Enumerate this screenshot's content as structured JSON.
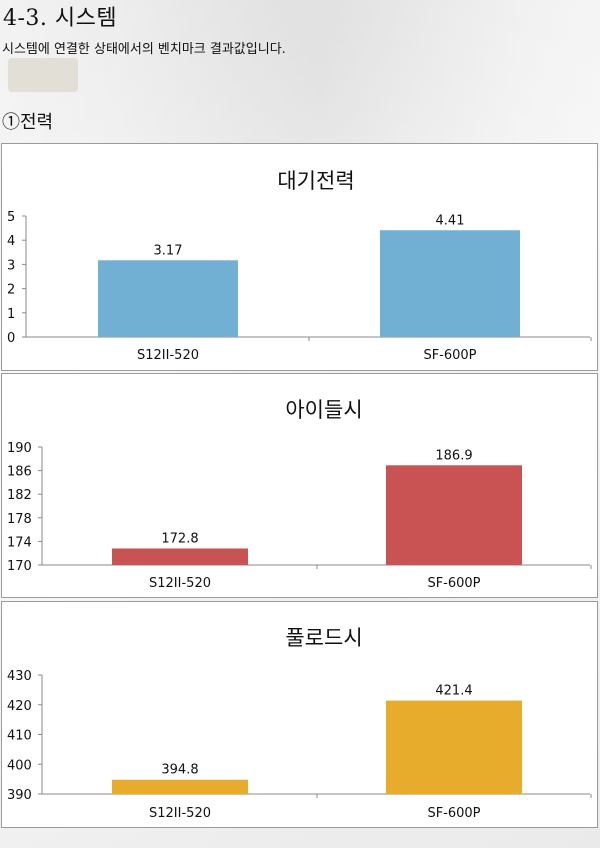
{
  "page": {
    "heading": "4-3. 시스템",
    "description": "시스템에 연결한 상태에서의 벤치마크 결과값입니다.",
    "section_label": "①전력"
  },
  "chart_data": [
    {
      "type": "bar",
      "title": "대기전력",
      "categories": [
        "S12II-520",
        "SF-600P"
      ],
      "values": [
        3.17,
        4.41
      ],
      "value_labels": [
        "3.17",
        "4.41"
      ],
      "ylim": [
        0,
        5
      ],
      "yticks": [
        0,
        1,
        2,
        3,
        4,
        5
      ],
      "color": "#71b0d3",
      "grid": false,
      "legend": "none"
    },
    {
      "type": "bar",
      "title": "아이들시",
      "categories": [
        "S12II-520",
        "SF-600P"
      ],
      "values": [
        172.8,
        186.9
      ],
      "value_labels": [
        "172.8",
        "186.9"
      ],
      "ylim": [
        170,
        190
      ],
      "yticks": [
        170,
        174,
        178,
        182,
        186,
        190
      ],
      "color": "#c95352",
      "grid": false,
      "legend": "none"
    },
    {
      "type": "bar",
      "title": "풀로드시",
      "categories": [
        "S12II-520",
        "SF-600P"
      ],
      "values": [
        394.8,
        421.4
      ],
      "value_labels": [
        "394.8",
        "421.4"
      ],
      "ylim": [
        390,
        430
      ],
      "yticks": [
        390,
        400,
        410,
        420,
        430
      ],
      "color": "#e8ac2c",
      "grid": false,
      "legend": "none"
    }
  ]
}
